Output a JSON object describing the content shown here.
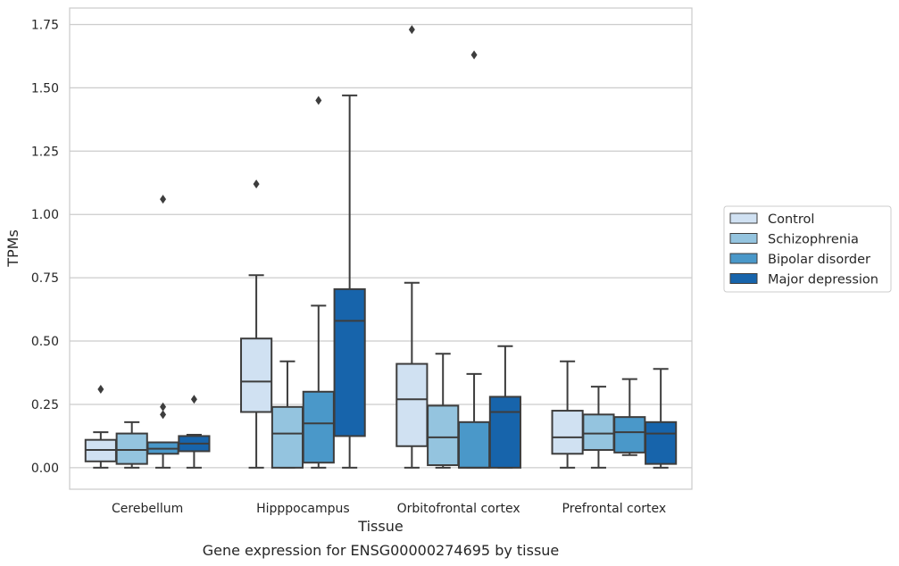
{
  "chart_data": {
    "type": "box",
    "title": "Gene expression for ENSG00000274695 by tissue",
    "xlabel": "Tissue",
    "ylabel": "TPMs",
    "ylim": [
      -0.085,
      1.815
    ],
    "yticks": [
      0.0,
      0.25,
      0.5,
      0.75,
      1.0,
      1.25,
      1.5,
      1.75
    ],
    "ytick_labels": [
      "0.00",
      "0.25",
      "0.50",
      "0.75",
      "1.00",
      "1.25",
      "1.50",
      "1.75"
    ],
    "grid": "horizontal",
    "legend_position": "right",
    "categories": [
      "Cerebellum",
      "Hipppocampus",
      "Orbitofrontal cortex",
      "Prefrontal cortex"
    ],
    "series": [
      {
        "name": "Control",
        "color": "#d0e1f2",
        "boxes": [
          {
            "whislo": 0.0,
            "q1": 0.025,
            "med": 0.07,
            "q3": 0.11,
            "whishi": 0.14,
            "fliers": [
              0.31
            ]
          },
          {
            "whislo": 0.0,
            "q1": 0.22,
            "med": 0.34,
            "q3": 0.51,
            "whishi": 0.76,
            "fliers": [
              1.12
            ]
          },
          {
            "whislo": 0.0,
            "q1": 0.085,
            "med": 0.27,
            "q3": 0.41,
            "whishi": 0.73,
            "fliers": [
              1.73
            ]
          },
          {
            "whislo": 0.0,
            "q1": 0.055,
            "med": 0.12,
            "q3": 0.225,
            "whishi": 0.42,
            "fliers": []
          }
        ]
      },
      {
        "name": "Schizophrenia",
        "color": "#94c4df",
        "boxes": [
          {
            "whislo": 0.0,
            "q1": 0.015,
            "med": 0.07,
            "q3": 0.135,
            "whishi": 0.18,
            "fliers": []
          },
          {
            "whislo": 0.0,
            "q1": 0.0,
            "med": 0.135,
            "q3": 0.24,
            "whishi": 0.42,
            "fliers": []
          },
          {
            "whislo": 0.0,
            "q1": 0.01,
            "med": 0.12,
            "q3": 0.245,
            "whishi": 0.45,
            "fliers": []
          },
          {
            "whislo": 0.0,
            "q1": 0.07,
            "med": 0.135,
            "q3": 0.21,
            "whishi": 0.32,
            "fliers": []
          }
        ]
      },
      {
        "name": "Bipolar disorder",
        "color": "#4a98c9",
        "boxes": [
          {
            "whislo": 0.0,
            "q1": 0.055,
            "med": 0.075,
            "q3": 0.1,
            "whishi": 0.1,
            "fliers": [
              0.21,
              0.24,
              1.06
            ]
          },
          {
            "whislo": 0.0,
            "q1": 0.02,
            "med": 0.175,
            "q3": 0.3,
            "whishi": 0.64,
            "fliers": [
              1.45
            ]
          },
          {
            "whislo": 0.0,
            "q1": 0.0,
            "med": 0.0,
            "q3": 0.18,
            "whishi": 0.37,
            "fliers": [
              1.63
            ]
          },
          {
            "whislo": 0.05,
            "q1": 0.06,
            "med": 0.14,
            "q3": 0.2,
            "whishi": 0.35,
            "fliers": []
          }
        ]
      },
      {
        "name": "Major depression",
        "color": "#1764ab",
        "boxes": [
          {
            "whislo": 0.0,
            "q1": 0.065,
            "med": 0.095,
            "q3": 0.125,
            "whishi": 0.13,
            "fliers": [
              0.27
            ]
          },
          {
            "whislo": 0.0,
            "q1": 0.125,
            "med": 0.58,
            "q3": 0.705,
            "whishi": 1.47,
            "fliers": []
          },
          {
            "whislo": 0.0,
            "q1": 0.0,
            "med": 0.22,
            "q3": 0.28,
            "whishi": 0.48,
            "fliers": []
          },
          {
            "whislo": 0.0,
            "q1": 0.015,
            "med": 0.135,
            "q3": 0.18,
            "whishi": 0.39,
            "fliers": []
          }
        ]
      }
    ]
  }
}
